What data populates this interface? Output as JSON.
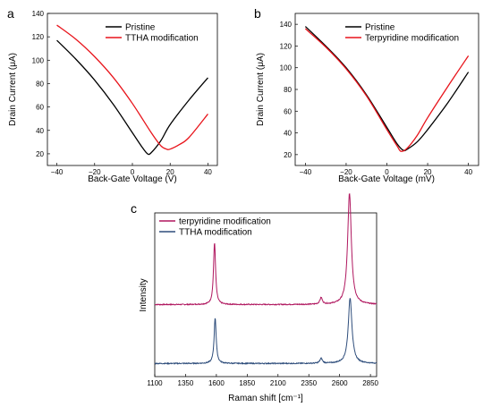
{
  "chart_data": [
    {
      "panel": "a",
      "type": "line",
      "xlabel": "Back-Gate Voltage (V)",
      "ylabel": "Drain Current (μA)",
      "xlim": [
        -45,
        45
      ],
      "ylim": [
        10,
        140
      ],
      "xticks": [
        -40,
        -20,
        0,
        20,
        40
      ],
      "xtick_labels": [
        "−40",
        "−20",
        "0",
        "20",
        "40"
      ],
      "yticks": [
        20,
        40,
        60,
        80,
        100,
        120,
        140
      ],
      "legend_position": "top-right",
      "series": [
        {
          "name": "Pristine",
          "color": "#000000",
          "x": [
            -40,
            -30,
            -20,
            -10,
            0,
            5,
            8,
            10,
            15,
            20,
            30,
            40
          ],
          "y": [
            117,
            101,
            83,
            62,
            38,
            26,
            20,
            21,
            31,
            45,
            66,
            85
          ]
        },
        {
          "name": "TTHA modification",
          "color": "#e8141b",
          "x": [
            -40,
            -30,
            -20,
            -10,
            0,
            10,
            15,
            18,
            20,
            25,
            30,
            40
          ],
          "y": [
            130,
            118,
            103,
            85,
            63,
            38,
            27,
            24,
            24,
            28,
            34,
            54
          ]
        }
      ]
    },
    {
      "panel": "b",
      "type": "line",
      "xlabel": "Back-Gate Voltage (mV)",
      "ylabel": "Drain Current (μA)",
      "xlim": [
        -45,
        45
      ],
      "ylim": [
        10,
        150
      ],
      "xticks": [
        -40,
        -20,
        0,
        20,
        40
      ],
      "xtick_labels": [
        "−40",
        "−20",
        "0",
        "20",
        "40"
      ],
      "yticks": [
        20,
        40,
        60,
        80,
        100,
        120,
        140
      ],
      "legend_position": "top-right",
      "series": [
        {
          "name": "Pristine",
          "color": "#000000",
          "x": [
            -40,
            -30,
            -20,
            -10,
            0,
            5,
            8,
            10,
            15,
            20,
            30,
            40
          ],
          "y": [
            138,
            120,
            100,
            75,
            45,
            30,
            24,
            25,
            32,
            43,
            68,
            96
          ]
        },
        {
          "name": "Terpyridine modification",
          "color": "#e8141b",
          "x": [
            -40,
            -30,
            -20,
            -10,
            0,
            5,
            7,
            10,
            15,
            20,
            30,
            40
          ],
          "y": [
            136,
            119,
            99,
            74,
            43,
            28,
            23,
            26,
            38,
            54,
            83,
            111
          ]
        }
      ]
    },
    {
      "panel": "c",
      "type": "line",
      "xlabel": "Raman shift [cm⁻¹]",
      "ylabel": "Intensity",
      "xlim": [
        1100,
        2900
      ],
      "ylim": [
        0,
        1
      ],
      "xticks": [
        1100,
        1350,
        1600,
        1850,
        2100,
        2350,
        2600,
        2850
      ],
      "xtick_labels": [
        "1100",
        "1350",
        "1600",
        "1850",
        "2100",
        "2350",
        "2600",
        "2850"
      ],
      "y_tick_labels_shown": false,
      "legend_position": "top-left",
      "series": [
        {
          "name": "terpyridine modification",
          "color": "#b0175f",
          "offset": 0.44,
          "peaks": [
            {
              "center": 1585,
              "height": 0.38,
              "width": 10
            },
            {
              "center": 2450,
              "height": 0.04,
              "width": 12
            },
            {
              "center": 2680,
              "height": 0.68,
              "width": 18
            }
          ]
        },
        {
          "name": "TTHA modification",
          "color": "#2e4d7b",
          "offset": 0.08,
          "peaks": [
            {
              "center": 1590,
              "height": 0.28,
              "width": 10
            },
            {
              "center": 2450,
              "height": 0.03,
              "width": 12
            },
            {
              "center": 2685,
              "height": 0.4,
              "width": 18
            }
          ]
        }
      ]
    }
  ],
  "panel_labels": [
    "a",
    "b",
    "c"
  ]
}
